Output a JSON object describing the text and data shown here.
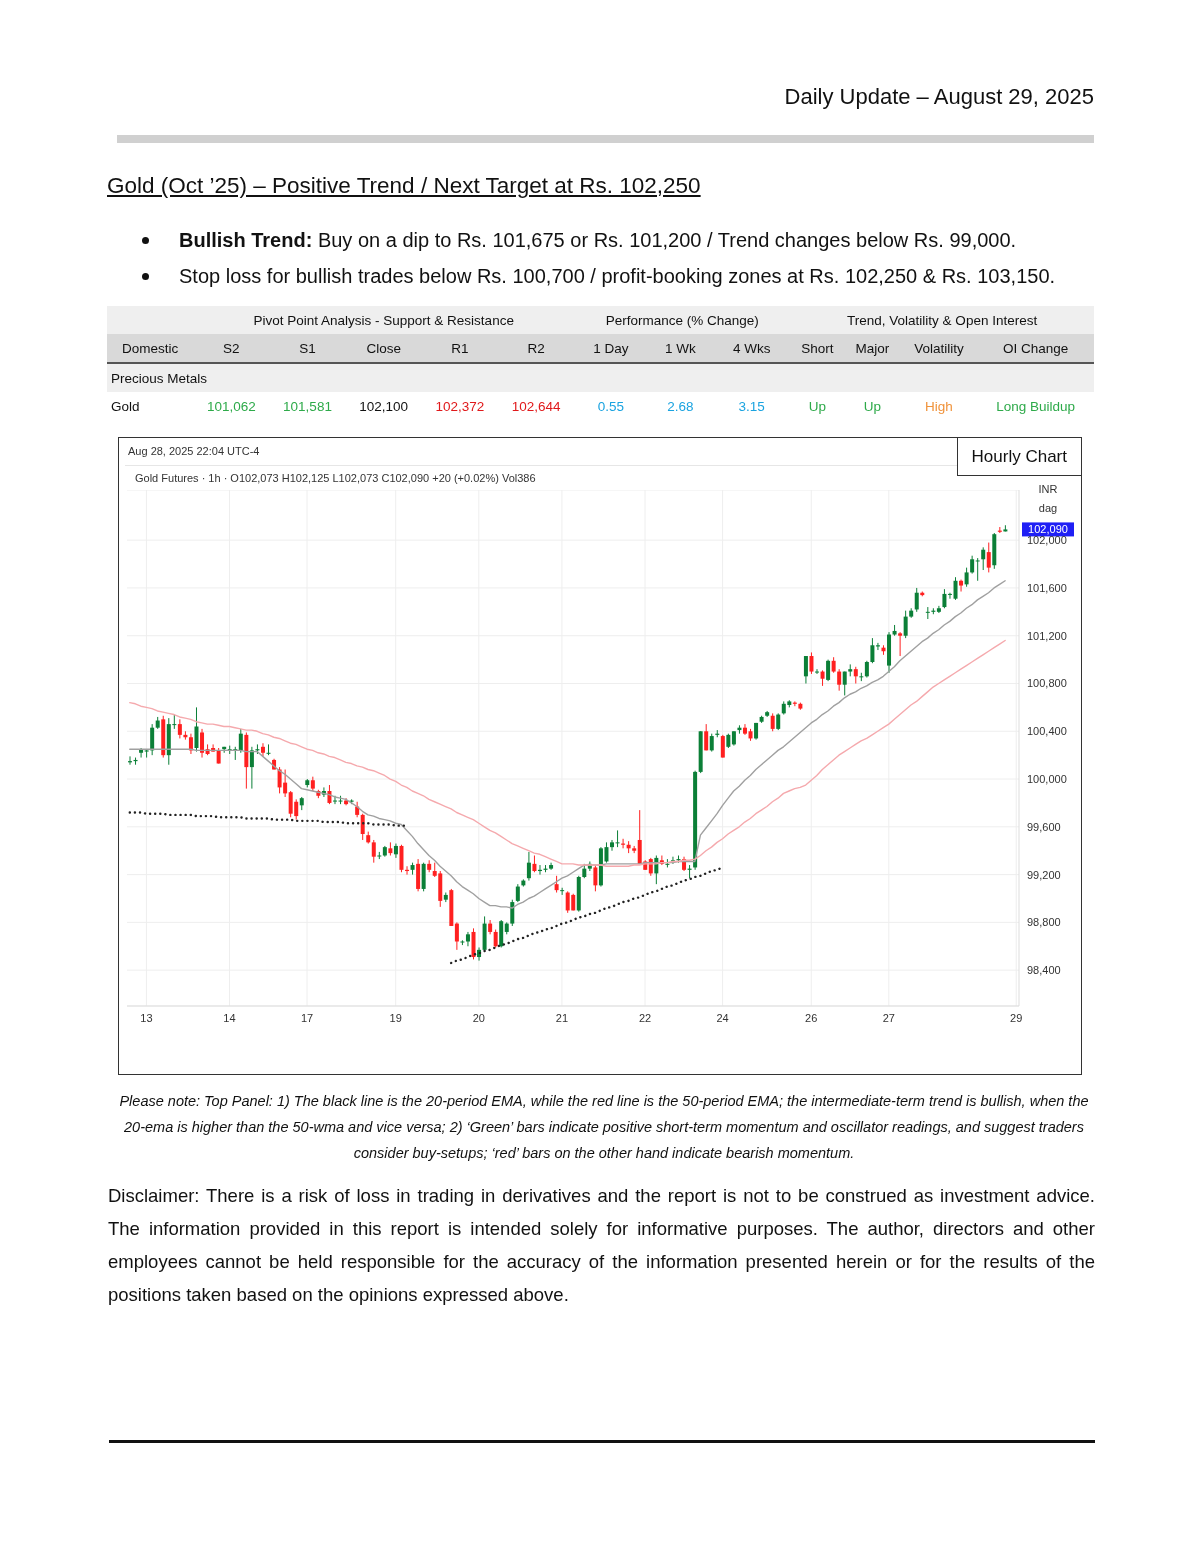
{
  "chart_data": [
    {
      "type": "other",
      "subtitle": "Daily Update – August 29, 2025",
      "title": "Gold (Oct ’25) – Positive Trend / Next Target at Rs. 102,250",
      "annotations": [
        "Bullish Trend: Buy on a dip to Rs. 101,675 or Rs. 101,200 / Trend changes below Rs. 99,000.",
        "Stop loss for bullish trades below Rs. 100,700 / profit-booking zones at Rs. 102,250 & Rs. 103,150.",
        "Pivot Point Analysis - Support & Resistance",
        "Performance (% Change)",
        "Trend, Volatility & Open Interest"
      ],
      "categories": [
        "Domestic",
        "S2",
        "S1",
        "Close",
        "R1",
        "R2",
        "1 Day",
        "1 Wk",
        "4 Wks",
        "Short",
        "Major",
        "Volatility",
        "OI Change"
      ],
      "cell_labels": [
        [
          "Precious Metals",
          null,
          null,
          null,
          null,
          null,
          null,
          null,
          null,
          null,
          null,
          null,
          null
        ],
        [
          "Gold",
          "101,062",
          "101,581",
          "102,100",
          "102,372",
          "102,644",
          "0.55",
          "2.68",
          "3.15",
          "Up",
          "Up",
          "High",
          "Long Buildup"
        ]
      ],
      "colors": [
        null,
        "#2eaa4a",
        "#2eaa4a",
        null,
        "#e0191b",
        "#e0191b",
        "#1aa3e0",
        "#1aa3e0",
        "#1aa3e0",
        "#2eaa4a",
        "#2eaa4a",
        "#f0923a",
        "#2eaa4a"
      ]
    },
    {
      "type": "candlestick",
      "subtitle": "Aug 28, 2025 22:04 UTC-4",
      "title": "Gold Futures · 1h · O102,073 H102,125 L102,073 C102,090 +20 (+0.02%) Vol386",
      "ylabel": "INR dag",
      "categories": [
        null,
        null,
        null,
        "13",
        null,
        null,
        null,
        null,
        null,
        null,
        null,
        null,
        null,
        null,
        null,
        null,
        null,
        null,
        "14",
        null,
        null,
        null,
        null,
        null,
        null,
        null,
        null,
        null,
        null,
        null,
        null,
        null,
        "17",
        null,
        null,
        null,
        null,
        null,
        null,
        null,
        null,
        null,
        null,
        null,
        null,
        null,
        null,
        null,
        "19",
        null,
        null,
        null,
        null,
        null,
        null,
        null,
        null,
        null,
        null,
        null,
        null,
        null,
        null,
        "20",
        null,
        null,
        null,
        null,
        null,
        null,
        null,
        null,
        null,
        null,
        null,
        null,
        null,
        null,
        "21",
        null,
        null,
        null,
        null,
        null,
        null,
        null,
        null,
        null,
        null,
        null,
        null,
        null,
        null,
        "22",
        null,
        null,
        null,
        null,
        null,
        null,
        null,
        null,
        null,
        null,
        null,
        null,
        null,
        "24",
        null,
        null,
        null,
        null,
        null,
        null,
        null,
        null,
        null,
        null,
        null,
        null,
        null,
        null,
        null,
        "26",
        null,
        null,
        null,
        null,
        null,
        null,
        null,
        null,
        null,
        null,
        null,
        null,
        null,
        "27",
        null,
        null,
        null,
        null,
        null,
        null,
        null,
        null,
        null,
        null,
        null,
        null,
        null,
        null,
        null,
        null,
        null,
        null,
        null,
        null,
        null,
        null,
        "29"
      ],
      "ohlc": [
        [
          100140,
          100190,
          100120,
          100150
        ],
        [
          100150,
          100180,
          100120,
          100160
        ],
        [
          100220,
          100260,
          100180,
          100250
        ],
        [
          100230,
          100250,
          100180,
          100240
        ],
        [
          100240,
          100460,
          100200,
          100430
        ],
        [
          100430,
          100520,
          100420,
          100490
        ],
        [
          100500,
          100530,
          100180,
          100200
        ],
        [
          100200,
          100510,
          100120,
          100460
        ],
        [
          100460,
          100540,
          100420,
          100460
        ],
        [
          100460,
          100500,
          100340,
          100370
        ],
        [
          100370,
          100400,
          100330,
          100350
        ],
        [
          100350,
          100380,
          100210,
          100240
        ],
        [
          100260,
          100600,
          100230,
          100440
        ],
        [
          100390,
          100420,
          100180,
          100220
        ],
        [
          100250,
          100290,
          100200,
          100210
        ],
        [
          100260,
          100290,
          100230,
          100230
        ],
        [
          100240,
          100260,
          100130,
          100130
        ],
        [
          100250,
          100270,
          100220,
          100270
        ],
        [
          100250,
          100280,
          100210,
          100250
        ],
        [
          100250,
          100270,
          100160,
          100250
        ],
        [
          100240,
          100420,
          100220,
          100380
        ],
        [
          100370,
          100390,
          99920,
          100100
        ],
        [
          100100,
          100270,
          99920,
          100240
        ],
        [
          100240,
          100290,
          100210,
          100250
        ],
        [
          100270,
          100300,
          100190,
          100220
        ],
        [
          100220,
          100290,
          100200,
          100220
        ],
        [
          100160,
          100170,
          100080,
          100080
        ],
        [
          100080,
          100100,
          99880,
          99930
        ],
        [
          99970,
          100080,
          99850,
          99880
        ],
        [
          99890,
          99900,
          99680,
          99710
        ],
        [
          99810,
          99830,
          99660,
          99690
        ],
        [
          99780,
          99850,
          99740,
          99840
        ],
        [
          99950,
          100000,
          99930,
          99990
        ],
        [
          99990,
          100020,
          99900,
          99920
        ],
        [
          99900,
          99910,
          99840,
          99860
        ],
        [
          99870,
          99930,
          99850,
          99900
        ],
        [
          99900,
          99950,
          99790,
          99800
        ],
        [
          99820,
          99860,
          99790,
          99820
        ],
        [
          99820,
          99860,
          99790,
          99820
        ],
        [
          99820,
          99840,
          99780,
          99790
        ],
        [
          99810,
          99830,
          99790,
          99820
        ],
        [
          99770,
          99810,
          99680,
          99700
        ],
        [
          99700,
          99710,
          99490,
          99540
        ],
        [
          99530,
          99560,
          99460,
          99470
        ],
        [
          99470,
          99490,
          99300,
          99350
        ],
        [
          99360,
          99390,
          99330,
          99360
        ],
        [
          99360,
          99440,
          99350,
          99430
        ],
        [
          99420,
          99470,
          99360,
          99380
        ],
        [
          99370,
          99460,
          99340,
          99440
        ],
        [
          99440,
          99450,
          99220,
          99240
        ],
        [
          99240,
          99270,
          99200,
          99230
        ],
        [
          99240,
          99300,
          99200,
          99280
        ],
        [
          99290,
          99330,
          99060,
          99080
        ],
        [
          99080,
          99300,
          99060,
          99290
        ],
        [
          99290,
          99320,
          99220,
          99240
        ],
        [
          99230,
          99300,
          99180,
          99190
        ],
        [
          99210,
          99230,
          98930,
          98980
        ],
        [
          98990,
          99050,
          98970,
          99030
        ],
        [
          99070,
          99080,
          98770,
          98770
        ],
        [
          98790,
          98800,
          98570,
          98640
        ],
        [
          98640,
          98650,
          98610,
          98640
        ],
        [
          98640,
          98720,
          98600,
          98700
        ],
        [
          98720,
          98750,
          98490,
          98510
        ],
        [
          98510,
          98590,
          98480,
          98570
        ],
        [
          98570,
          98850,
          98560,
          98790
        ],
        [
          98790,
          98820,
          98700,
          98720
        ],
        [
          98720,
          98740,
          98590,
          98600
        ],
        [
          98600,
          98820,
          98590,
          98810
        ],
        [
          98720,
          98800,
          98700,
          98790
        ],
        [
          98790,
          98990,
          98770,
          98970
        ],
        [
          98980,
          99120,
          98970,
          99100
        ],
        [
          99110,
          99160,
          99100,
          99150
        ],
        [
          99170,
          99390,
          99150,
          99300
        ],
        [
          99290,
          99360,
          99220,
          99230
        ],
        [
          99230,
          99280,
          99200,
          99240
        ],
        [
          99240,
          99280,
          99220,
          99250
        ],
        [
          99250,
          99300,
          99240,
          99280
        ],
        [
          99120,
          99190,
          99050,
          99070
        ],
        [
          99070,
          99090,
          99030,
          99070
        ],
        [
          99050,
          99060,
          98880,
          98900
        ],
        [
          99030,
          99040,
          98900,
          98900
        ],
        [
          98900,
          99190,
          98890,
          99180
        ],
        [
          99180,
          99290,
          99170,
          99250
        ],
        [
          99250,
          99310,
          99230,
          99290
        ],
        [
          99260,
          99280,
          99060,
          99110
        ],
        [
          99110,
          99430,
          99100,
          99420
        ],
        [
          99310,
          99470,
          99300,
          99430
        ],
        [
          99430,
          99490,
          99400,
          99470
        ],
        [
          99470,
          99570,
          99430,
          99470
        ],
        [
          99460,
          99500,
          99420,
          99450
        ],
        [
          99450,
          99480,
          99380,
          99420
        ],
        [
          99420,
          99440,
          99380,
          99400
        ],
        [
          99490,
          99740,
          99290,
          99290
        ],
        [
          99310,
          99320,
          99240,
          99240
        ],
        [
          99330,
          99340,
          99190,
          99210
        ],
        [
          99210,
          99360,
          99120,
          99340
        ],
        [
          99320,
          99360,
          99280,
          99290
        ],
        [
          99290,
          99330,
          99260,
          99290
        ],
        [
          99310,
          99350,
          99290,
          99320
        ],
        [
          99320,
          99360,
          99300,
          99330
        ],
        [
          99330,
          99350,
          99230,
          99240
        ],
        [
          99240,
          99280,
          99170,
          99250
        ],
        [
          99260,
          100070,
          99240,
          100060
        ],
        [
          100060,
          100400,
          100050,
          100400
        ],
        [
          100400,
          100460,
          100240,
          100240
        ],
        [
          100240,
          100380,
          100230,
          100360
        ],
        [
          100370,
          100410,
          100350,
          100380
        ],
        [
          100360,
          100370,
          100180,
          100180
        ],
        [
          100270,
          100380,
          100260,
          100370
        ],
        [
          100290,
          100400,
          100280,
          100400
        ],
        [
          100410,
          100450,
          100380,
          100430
        ],
        [
          100430,
          100460,
          100370,
          100380
        ],
        [
          100400,
          100420,
          100320,
          100340
        ],
        [
          100340,
          100470,
          100330,
          100470
        ],
        [
          100480,
          100530,
          100470,
          100520
        ],
        [
          100530,
          100570,
          100520,
          100560
        ],
        [
          100530,
          100550,
          100400,
          100420
        ],
        [
          100420,
          100550,
          100410,
          100540
        ],
        [
          100550,
          100650,
          100540,
          100630
        ],
        [
          100620,
          100660,
          100600,
          100650
        ],
        [
          100640,
          100650,
          100610,
          100630
        ],
        [
          100630,
          100640,
          100580,
          100590
        ],
        [
          100860,
          101030,
          100800,
          101030
        ],
        [
          101030,
          101060,
          100880,
          100900
        ],
        [
          100900,
          100920,
          100880,
          100900
        ],
        [
          100900,
          100910,
          100780,
          100840
        ],
        [
          100830,
          101000,
          100820,
          100990
        ],
        [
          100990,
          101020,
          100890,
          100900
        ],
        [
          100900,
          100920,
          100740,
          100790
        ],
        [
          100790,
          100900,
          100700,
          100900
        ],
        [
          100900,
          100960,
          100860,
          100920
        ],
        [
          100920,
          100940,
          100800,
          100860
        ],
        [
          100860,
          100890,
          100820,
          100860
        ],
        [
          100860,
          100990,
          100850,
          100980
        ],
        [
          100980,
          101180,
          100970,
          101120
        ],
        [
          101110,
          101140,
          101080,
          101120
        ],
        [
          101100,
          101120,
          101040,
          101070
        ],
        [
          100950,
          101230,
          100890,
          101210
        ],
        [
          101210,
          101290,
          101200,
          101240
        ],
        [
          101220,
          101230,
          101030,
          101200
        ],
        [
          101200,
          101410,
          101180,
          101360
        ],
        [
          101360,
          101430,
          101350,
          101410
        ],
        [
          101420,
          101600,
          101400,
          101560
        ],
        [
          101560,
          101570,
          101530,
          101540
        ],
        [
          101400,
          101440,
          101340,
          101400
        ],
        [
          101400,
          101430,
          101380,
          101410
        ],
        [
          101400,
          101450,
          101390,
          101430
        ],
        [
          101440,
          101590,
          101430,
          101550
        ],
        [
          101550,
          101560,
          101510,
          101550
        ],
        [
          101510,
          101690,
          101500,
          101660
        ],
        [
          101660,
          101670,
          101570,
          101620
        ],
        [
          101630,
          101770,
          101610,
          101730
        ],
        [
          101730,
          101870,
          101720,
          101840
        ],
        [
          101830,
          101850,
          101660,
          101830
        ],
        [
          101840,
          101940,
          101750,
          101920
        ],
        [
          101900,
          101980,
          101730,
          101770
        ],
        [
          101790,
          102060,
          101760,
          102050
        ],
        [
          102080,
          102110,
          102060,
          102070
        ],
        [
          102073,
          102125,
          102073,
          102090
        ],
        null,
        null
      ],
      "ylim": [
        98100,
        102420
      ],
      "yticks": [
        {
          "value": 98400,
          "label": "98,400"
        },
        {
          "value": 98800,
          "label": "98,800"
        },
        {
          "value": 99200,
          "label": "99,200"
        },
        {
          "value": 99600,
          "label": "99,600"
        },
        {
          "value": 100000,
          "label": "100,000"
        },
        {
          "value": 100400,
          "label": "100,400"
        },
        {
          "value": 100800,
          "label": "100,800"
        },
        {
          "value": 101200,
          "label": "101,200"
        },
        {
          "value": 101600,
          "label": "101,600"
        },
        {
          "value": 102000,
          "label": "102,000"
        }
      ],
      "grid": true,
      "series": [
        {
          "type": "line",
          "color": "#a0a0a0",
          "values": [
            100250,
            100250,
            100250,
            100250,
            100250,
            100250,
            100250,
            100250,
            100250,
            100250,
            100250,
            100250,
            100240,
            100240,
            100240,
            100240,
            100240,
            100240,
            100240,
            100240,
            100240,
            100230,
            100230,
            100230,
            100190,
            100150,
            100110,
            100070,
            100040,
            100000,
            99960,
            99920,
            99910,
            99900,
            99890,
            99880,
            99870,
            99850,
            99840,
            99830,
            99800,
            99770,
            99730,
            99700,
            99690,
            99670,
            99660,
            99650,
            99630,
            99620,
            99570,
            99520,
            99460,
            99410,
            99360,
            99320,
            99270,
            99230,
            99190,
            99140,
            99100,
            99070,
            99040,
            99000,
            98970,
            98940,
            98940,
            98930,
            98930,
            98920,
            98950,
            98970,
            99000,
            99020,
            99050,
            99080,
            99110,
            99140,
            99170,
            99190,
            99220,
            99250,
            99280,
            99280,
            99280,
            99280,
            99290,
            99290,
            99290,
            99290,
            99290,
            99290,
            99290,
            99300,
            99300,
            99300,
            99300,
            99300,
            99300,
            99310,
            99310,
            99310,
            99310,
            99530,
            99590,
            99650,
            99710,
            99780,
            99840,
            99900,
            99940,
            99990,
            100030,
            100080,
            100120,
            100160,
            100200,
            100240,
            100270,
            100310,
            100350,
            100390,
            100430,
            100470,
            100500,
            100540,
            100570,
            100610,
            100640,
            100680,
            100710,
            100730,
            100760,
            100780,
            100810,
            100830,
            100860,
            100900,
            100940,
            100990,
            101030,
            101070,
            101110,
            101150,
            101180,
            101220,
            101250,
            101290,
            101320,
            101360,
            101390,
            101430,
            101460,
            101500,
            101530,
            101560,
            101600,
            101630,
            101660,
            null,
            null
          ]
        },
        {
          "type": "line",
          "color": "#f5a9ad",
          "values": [
            100640,
            100630,
            100610,
            100600,
            100590,
            100570,
            100560,
            100550,
            100540,
            100520,
            100510,
            100500,
            100480,
            100470,
            100460,
            100460,
            100450,
            100440,
            100440,
            100430,
            100420,
            100410,
            100410,
            100400,
            100380,
            100370,
            100350,
            100340,
            100320,
            100300,
            100290,
            100270,
            100250,
            100240,
            100220,
            100210,
            100190,
            100180,
            100160,
            100140,
            100130,
            100110,
            100100,
            100080,
            100070,
            100050,
            100030,
            100000,
            99980,
            99950,
            99930,
            99900,
            99880,
            99860,
            99830,
            99810,
            99790,
            99770,
            99750,
            99720,
            99700,
            99680,
            99660,
            99630,
            99600,
            99570,
            99550,
            99520,
            99490,
            99460,
            99440,
            99420,
            99400,
            99380,
            99370,
            99350,
            99330,
            99310,
            99290,
            99290,
            99290,
            99280,
            99280,
            99280,
            99280,
            99280,
            99270,
            99270,
            99270,
            99270,
            99270,
            99280,
            99280,
            99290,
            99290,
            99290,
            99300,
            99300,
            99310,
            99310,
            99320,
            99320,
            99330,
            99360,
            99400,
            99430,
            99470,
            99500,
            99540,
            99570,
            99600,
            99640,
            99670,
            99710,
            99740,
            99770,
            99810,
            99840,
            99880,
            99900,
            99920,
            99930,
            99950,
            99990,
            100030,
            100080,
            100120,
            100160,
            100200,
            100230,
            100260,
            100290,
            100320,
            100340,
            100370,
            100400,
            100430,
            100460,
            100500,
            100540,
            100580,
            100620,
            100650,
            100690,
            100730,
            100770,
            100800,
            100830,
            100860,
            100890,
            100920,
            100950,
            100980,
            101010,
            101040,
            101070,
            101100,
            101130,
            101160,
            null,
            null
          ]
        },
        {
          "type": "line",
          "color": "#222222",
          "line_style": "dotted",
          "values": [
            99720,
            99720,
            99720,
            99710,
            99710,
            99710,
            99710,
            99700,
            99700,
            99700,
            99700,
            99700,
            99690,
            99690,
            99690,
            99690,
            99680,
            99680,
            99680,
            99680,
            99680,
            99670,
            99670,
            99670,
            99670,
            99670,
            99660,
            99660,
            99660,
            99660,
            99650,
            99650,
            99650,
            99650,
            99650,
            99640,
            99640,
            99640,
            99640,
            99630,
            99630,
            99630,
            99630,
            99630,
            99620,
            99620,
            99620,
            99620,
            99610,
            99610,
            99610,
            null,
            null,
            null,
            null,
            null,
            null,
            null,
            null,
            null,
            null,
            null,
            null,
            null,
            null,
            null,
            null,
            null,
            null,
            null,
            null,
            null,
            null,
            null,
            null,
            null,
            null,
            null,
            null,
            null,
            null,
            null,
            null,
            null,
            null,
            null,
            null,
            null,
            null,
            null,
            null,
            null,
            null,
            null,
            null,
            null,
            null,
            null,
            null,
            null,
            null,
            null,
            null,
            null,
            null,
            null,
            null,
            null,
            null,
            null,
            null,
            null,
            null,
            null,
            null,
            null,
            null,
            null,
            null,
            null,
            null,
            null,
            null,
            null,
            null,
            null,
            null,
            null,
            null,
            null,
            null,
            null,
            null,
            null,
            null,
            null,
            null,
            null,
            null,
            null,
            null,
            null,
            null,
            null,
            null,
            null,
            null,
            null,
            null,
            null,
            null,
            null,
            null,
            null,
            null,
            null,
            null,
            null,
            null,
            null,
            null
          ]
        },
        {
          "type": "line",
          "color": "#222222",
          "line_style": "dotted",
          "values": [
            null,
            null,
            null,
            null,
            null,
            null,
            null,
            null,
            null,
            null,
            null,
            null,
            null,
            null,
            null,
            null,
            null,
            null,
            null,
            null,
            null,
            null,
            null,
            null,
            null,
            null,
            null,
            null,
            null,
            null,
            null,
            null,
            null,
            null,
            null,
            null,
            null,
            null,
            null,
            null,
            null,
            null,
            null,
            null,
            null,
            null,
            null,
            null,
            null,
            null,
            null,
            null,
            null,
            null,
            null,
            null,
            null,
            null,
            98460,
            98480,
            98490,
            98510,
            98530,
            98540,
            98560,
            98570,
            98590,
            98610,
            98620,
            98640,
            98660,
            98670,
            98690,
            98710,
            98720,
            98740,
            98750,
            98770,
            98790,
            98800,
            98820,
            98840,
            98850,
            98870,
            98880,
            98900,
            98920,
            98930,
            98950,
            98970,
            98980,
            99000,
            99010,
            99030,
            99050,
            99060,
            99080,
            99100,
            99110,
            99130,
            99150,
            99160,
            99180,
            99190,
            99210,
            99230,
            99240,
            99260,
            null,
            null,
            null,
            null,
            null,
            null,
            null,
            null,
            null,
            null,
            null,
            null,
            null,
            null,
            null,
            null,
            null,
            null,
            null,
            null,
            null,
            null,
            null,
            null,
            null,
            null,
            null,
            null,
            null,
            null,
            null,
            null,
            null,
            null,
            null,
            null,
            null,
            null,
            null,
            null,
            null,
            null,
            null,
            null,
            null,
            null,
            null,
            null,
            null,
            null,
            null,
            null,
            null
          ]
        }
      ],
      "annotations": [
        "Hourly Chart",
        "102,090",
        "Please note: Top Panel: 1) The black line is the 20-period EMA, while the red line is the 50-period EMA; the intermediate-term trend is bullish, when the 20-ema is higher than the 50-wma and vice versa; 2) ‘Green’ bars indicate positive short-term momentum and oscillator readings, and suggest traders consider buy-setups; ‘red’ bars on the other hand indicate bearish momentum.",
        "Disclaimer: There is a risk of loss in trading in derivatives and the report is not to be construed as investment advice. The information provided in this report is intended solely for informative purposes. The author, directors and other employees cannot be held responsible for the accuracy of the information presented herein or for the results of the positions taken based on the opinions expressed above."
      ]
    }
  ]
}
